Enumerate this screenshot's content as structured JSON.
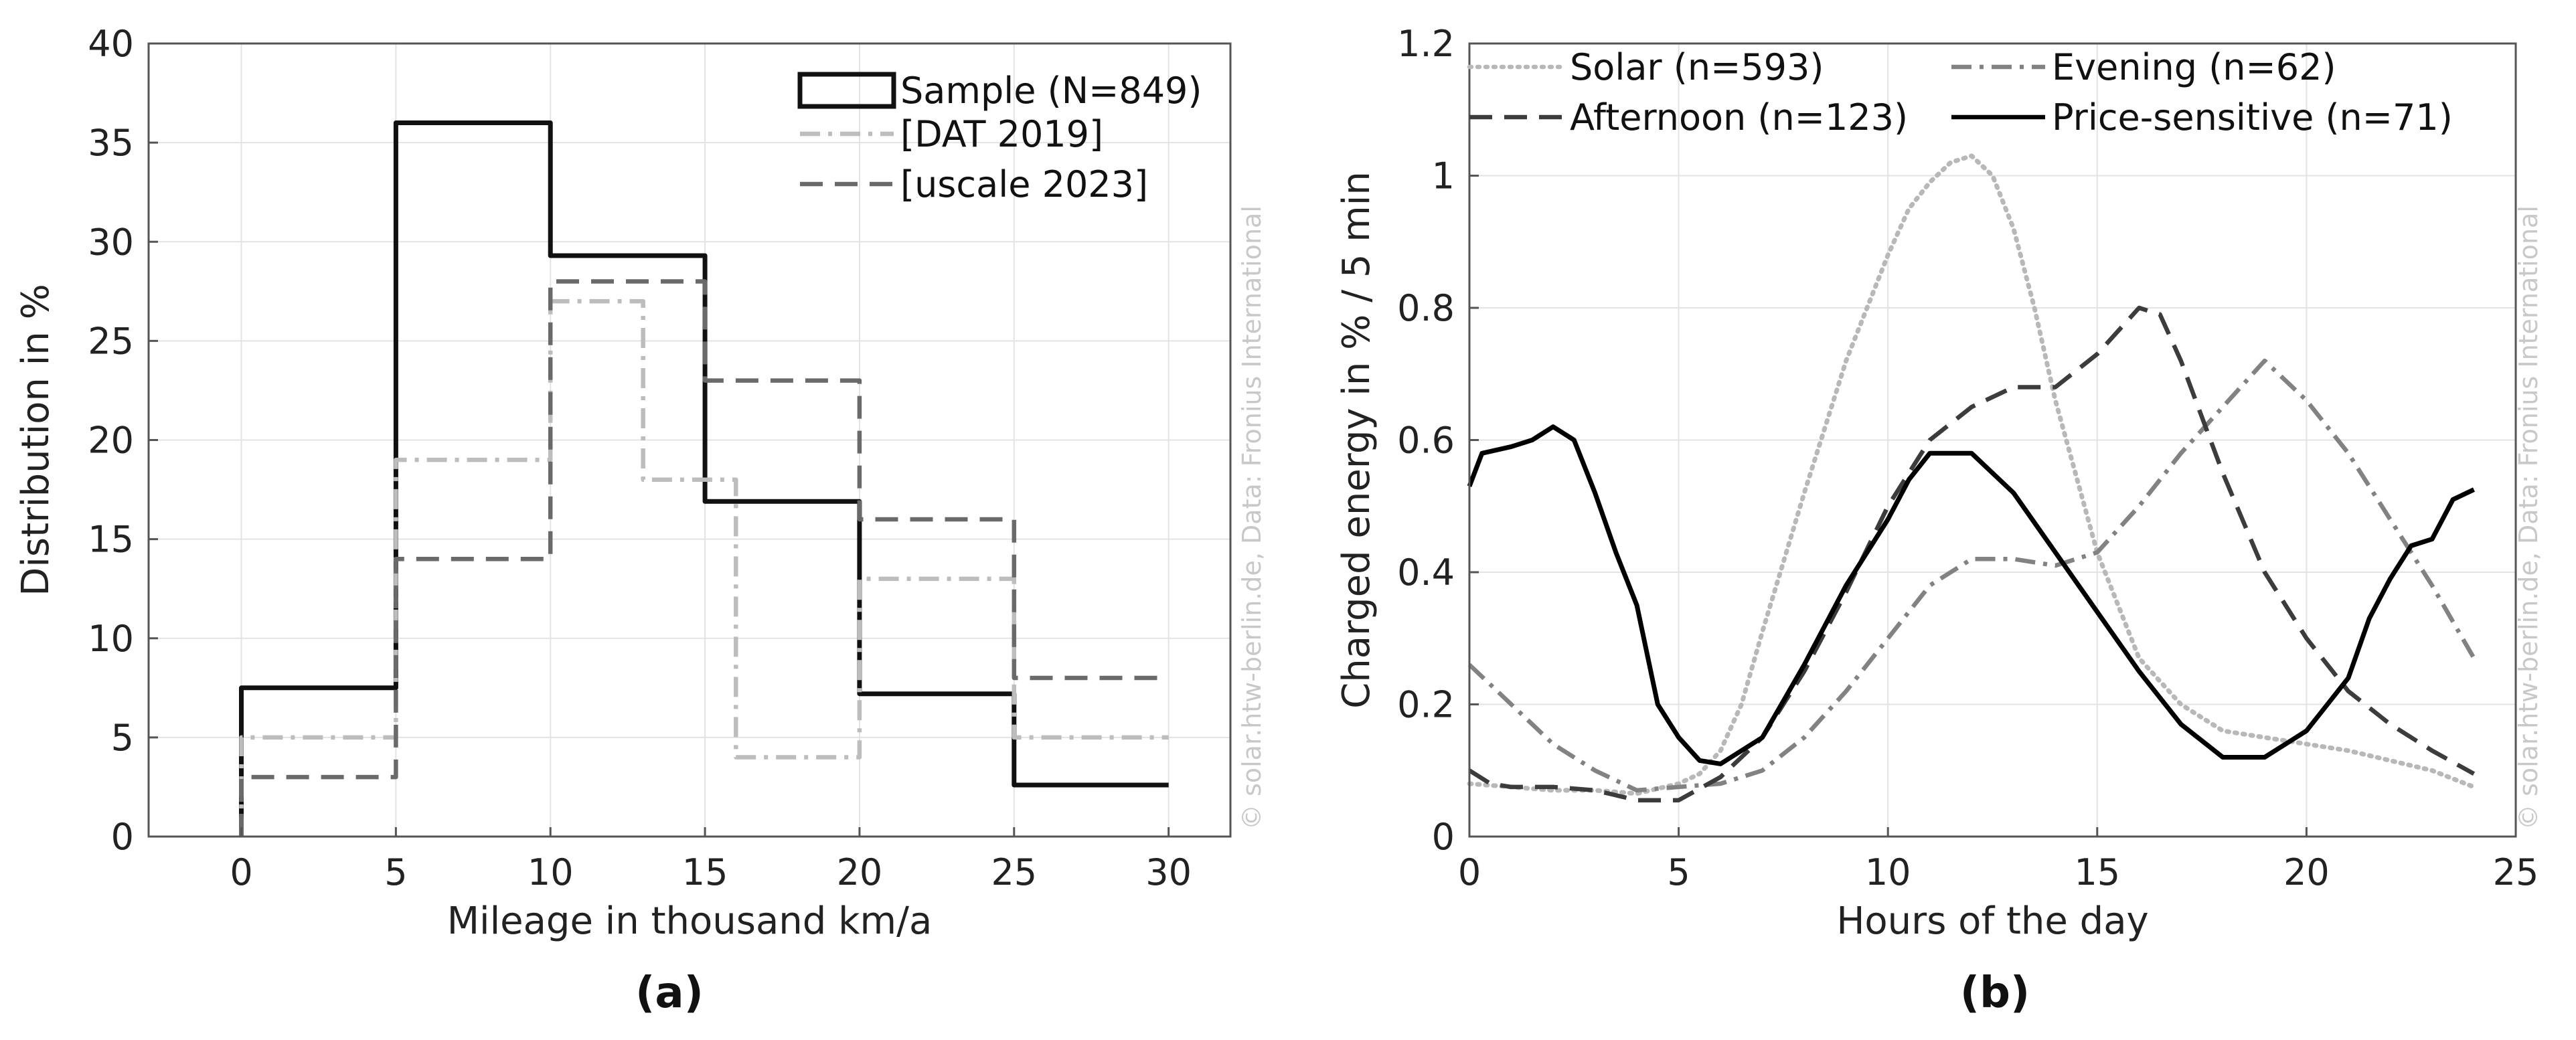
{
  "figure": {
    "panel_labels": [
      "(a)",
      "(b)"
    ],
    "watermark": "© solar.htw-berlin.de, Data: Fronius International"
  },
  "colors": {
    "sample": "#111111",
    "dat": "#bdbdbd",
    "uscale": "#6a6a6a",
    "solar": "#b8b8b8",
    "afternoon": "#3c3c3c",
    "evening": "#828282",
    "price": "#000000",
    "grid": "#e3e3e3",
    "axis": "#555555",
    "watermark": "#c8c8c8"
  },
  "chart_data": [
    {
      "type": "line",
      "style": "step-histogram",
      "xlabel": "Mileage in thousand km/a",
      "ylabel": "Distribution in %",
      "xlim": [
        -3,
        32
      ],
      "ylim": [
        0,
        40
      ],
      "xticks": [
        0,
        5,
        10,
        15,
        20,
        25,
        30
      ],
      "yticks": [
        0,
        5,
        10,
        15,
        20,
        25,
        30,
        35,
        40
      ],
      "grid": true,
      "legend_position": "top-right",
      "series": [
        {
          "name": "Sample (N=849)",
          "key": "sample",
          "dash": "solid",
          "edges": [
            0,
            5,
            10,
            15,
            20,
            25,
            30
          ],
          "values": [
            7.5,
            36,
            29.3,
            16.9,
            7.2,
            2.6
          ]
        },
        {
          "name": "[DAT 2019]",
          "key": "dat",
          "dash": "dashdot",
          "edges": [
            0,
            5,
            10,
            13,
            16,
            20,
            25,
            30
          ],
          "values": [
            5,
            19,
            27,
            18,
            4,
            13,
            5
          ]
        },
        {
          "name": "[uscale 2023]",
          "key": "uscale",
          "dash": "dashed",
          "edges": [
            0,
            5,
            10,
            15,
            20,
            25,
            30
          ],
          "values": [
            3,
            14,
            28,
            23,
            16,
            8
          ]
        }
      ]
    },
    {
      "type": "line",
      "xlabel": "Hours of the day",
      "ylabel": "Charged energy in % / 5 min",
      "xlim": [
        0,
        25
      ],
      "ylim": [
        0,
        1.2
      ],
      "xticks": [
        0,
        5,
        10,
        15,
        20,
        25
      ],
      "yticks": [
        0,
        0.2,
        0.4,
        0.6,
        0.8,
        1,
        1.2
      ],
      "ytick_labels": [
        "0",
        "0.2",
        "0.4",
        "0.6",
        "0.8",
        "1",
        "1.2"
      ],
      "grid": true,
      "legend_position": "top",
      "series": [
        {
          "name": "Solar (n=593)",
          "key": "solar",
          "dash": "dotted",
          "x": [
            0,
            1,
            2,
            3,
            4,
            5,
            5.5,
            6,
            6.5,
            7,
            8,
            9,
            10,
            10.5,
            11,
            11.5,
            12,
            12.5,
            13,
            13.5,
            14,
            15,
            16,
            17,
            18,
            19,
            20,
            21,
            22,
            23,
            24
          ],
          "y": [
            0.08,
            0.075,
            0.07,
            0.07,
            0.065,
            0.08,
            0.095,
            0.13,
            0.2,
            0.31,
            0.52,
            0.72,
            0.88,
            0.95,
            0.99,
            1.02,
            1.03,
            1.0,
            0.92,
            0.8,
            0.66,
            0.43,
            0.27,
            0.2,
            0.16,
            0.15,
            0.14,
            0.13,
            0.115,
            0.1,
            0.075
          ]
        },
        {
          "name": "Evening (n=62)",
          "key": "evening",
          "dash": "dashdot",
          "x": [
            0,
            1,
            2,
            3,
            4,
            5,
            6,
            7,
            8,
            9,
            10,
            11,
            12,
            13,
            14,
            15,
            16,
            17,
            18,
            19,
            20,
            21,
            22,
            23,
            24
          ],
          "y": [
            0.26,
            0.2,
            0.14,
            0.1,
            0.07,
            0.075,
            0.08,
            0.1,
            0.15,
            0.22,
            0.3,
            0.38,
            0.42,
            0.42,
            0.41,
            0.43,
            0.5,
            0.58,
            0.65,
            0.72,
            0.66,
            0.58,
            0.48,
            0.38,
            0.27
          ]
        },
        {
          "name": "Afternoon (n=123)",
          "key": "afternoon",
          "dash": "dashed",
          "x": [
            0,
            0.5,
            1,
            2,
            3,
            4,
            5,
            6,
            7,
            8,
            9,
            10,
            11,
            12,
            13,
            14,
            15,
            16,
            16.5,
            17,
            18,
            19,
            20,
            21,
            22,
            23,
            24
          ],
          "y": [
            0.1,
            0.08,
            0.075,
            0.075,
            0.07,
            0.055,
            0.055,
            0.09,
            0.15,
            0.25,
            0.37,
            0.5,
            0.6,
            0.65,
            0.68,
            0.68,
            0.73,
            0.8,
            0.79,
            0.72,
            0.55,
            0.4,
            0.3,
            0.22,
            0.17,
            0.13,
            0.095
          ]
        },
        {
          "name": "Price-sensitive (n=71)",
          "key": "price",
          "dash": "solid",
          "x": [
            0,
            0.3,
            1,
            1.5,
            2,
            2.5,
            3,
            3.5,
            4,
            4.5,
            5,
            5.5,
            6,
            7,
            8,
            9,
            10,
            10.5,
            11,
            11.5,
            12,
            13,
            14,
            15,
            16,
            17,
            18,
            18.5,
            19,
            19.5,
            20,
            20.5,
            21,
            21.5,
            22,
            22.5,
            23,
            23.5,
            24
          ],
          "y": [
            0.53,
            0.58,
            0.59,
            0.6,
            0.62,
            0.6,
            0.52,
            0.43,
            0.35,
            0.2,
            0.15,
            0.115,
            0.11,
            0.15,
            0.26,
            0.38,
            0.48,
            0.54,
            0.58,
            0.58,
            0.58,
            0.52,
            0.43,
            0.34,
            0.25,
            0.17,
            0.12,
            0.12,
            0.12,
            0.14,
            0.16,
            0.2,
            0.24,
            0.33,
            0.39,
            0.44,
            0.45,
            0.51,
            0.525
          ]
        }
      ]
    }
  ]
}
